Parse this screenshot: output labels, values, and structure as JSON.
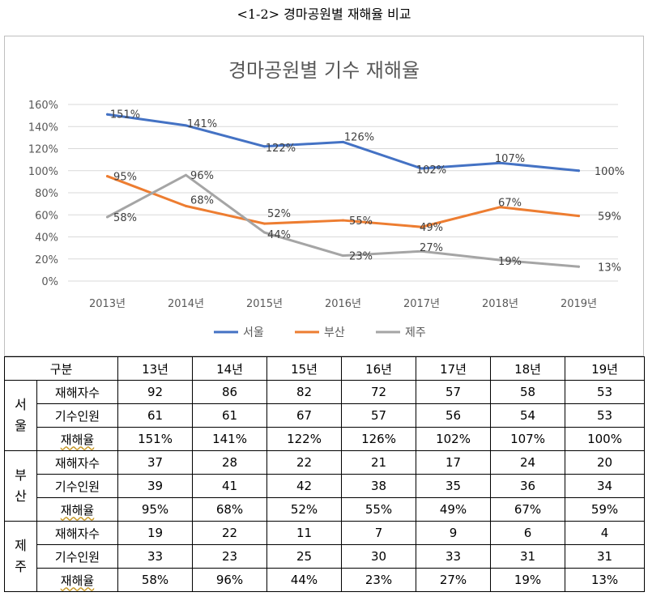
{
  "caption": "<1-2> 경마공원별 재해율 비교",
  "chart_data": {
    "type": "line",
    "title": "경마공원별 기수 재해율",
    "categories": [
      "2013년",
      "2014년",
      "2015년",
      "2016년",
      "2017년",
      "2018년",
      "2019년"
    ],
    "ylim": [
      0,
      160
    ],
    "yticks": [
      "0%",
      "20%",
      "40%",
      "60%",
      "80%",
      "100%",
      "120%",
      "140%",
      "160%"
    ],
    "grid": true,
    "legend_position": "bottom",
    "series": [
      {
        "name": "서울",
        "color": "#4472c4",
        "values": [
          151,
          141,
          122,
          126,
          102,
          107,
          100
        ],
        "labels": [
          "151%",
          "141%",
          "122%",
          "126%",
          "102%",
          "107%",
          "100%"
        ]
      },
      {
        "name": "부산",
        "color": "#ed7d31",
        "values": [
          95,
          68,
          52,
          55,
          49,
          67,
          59
        ],
        "labels": [
          "95%",
          "68%",
          "52%",
          "55%",
          "49%",
          "67%",
          "59%"
        ]
      },
      {
        "name": "제주",
        "color": "#a5a5a5",
        "values": [
          58,
          96,
          44,
          23,
          27,
          19,
          13
        ],
        "labels": [
          "58%",
          "96%",
          "44%",
          "23%",
          "27%",
          "19%",
          "13%"
        ]
      }
    ]
  },
  "table": {
    "group_header": "구분",
    "years": [
      "13년",
      "14년",
      "15년",
      "16년",
      "17년",
      "18년",
      "19년"
    ],
    "groups": [
      {
        "city": "서\n울",
        "rows": [
          {
            "label": "재해자수",
            "values": [
              "92",
              "86",
              "82",
              "72",
              "57",
              "58",
              "53"
            ]
          },
          {
            "label": "기수인원",
            "values": [
              "61",
              "61",
              "67",
              "57",
              "56",
              "54",
              "53"
            ]
          },
          {
            "label": "재해율",
            "values": [
              "151%",
              "141%",
              "122%",
              "126%",
              "102%",
              "107%",
              "100%"
            ]
          }
        ]
      },
      {
        "city": "부\n산",
        "rows": [
          {
            "label": "재해자수",
            "values": [
              "37",
              "28",
              "22",
              "21",
              "17",
              "24",
              "20"
            ]
          },
          {
            "label": "기수인원",
            "values": [
              "39",
              "41",
              "42",
              "38",
              "35",
              "36",
              "34"
            ]
          },
          {
            "label": "재해율",
            "values": [
              "95%",
              "68%",
              "52%",
              "55%",
              "49%",
              "67%",
              "59%"
            ]
          }
        ]
      },
      {
        "city": "제\n주",
        "rows": [
          {
            "label": "재해자수",
            "values": [
              "19",
              "22",
              "11",
              "7",
              "9",
              "6",
              "4"
            ]
          },
          {
            "label": "기수인원",
            "values": [
              "33",
              "23",
              "25",
              "30",
              "33",
              "31",
              "31"
            ]
          },
          {
            "label": "재해율",
            "values": [
              "58%",
              "96%",
              "44%",
              "23%",
              "27%",
              "19%",
              "13%"
            ]
          }
        ]
      }
    ]
  }
}
